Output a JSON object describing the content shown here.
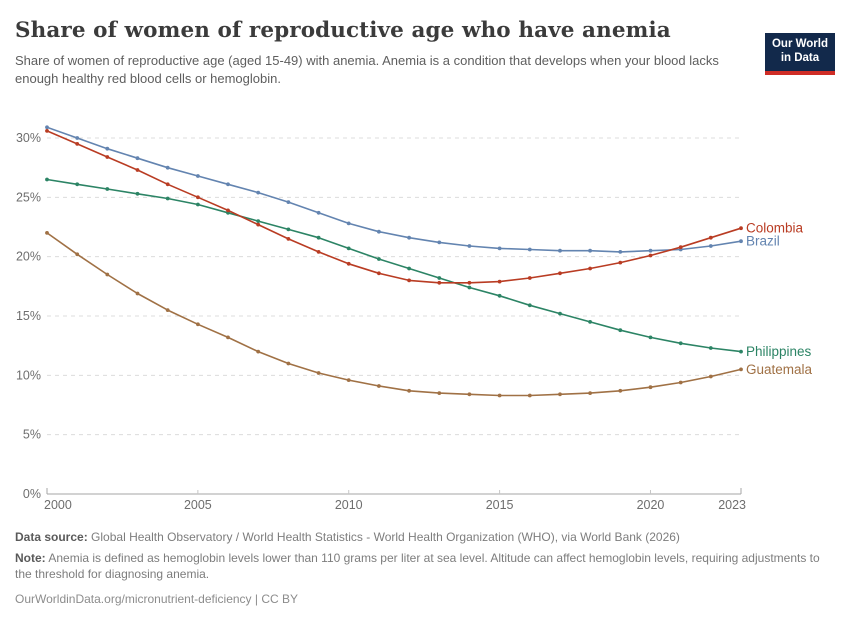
{
  "header": {
    "title": "Share of women of reproductive age who have anemia",
    "subtitle": "Share of women of reproductive age (aged 15-49) with anemia. Anemia is a condition that develops when your blood lacks enough healthy red blood cells or hemoglobin.",
    "logo": {
      "line1": "Our World",
      "line2": "in Data",
      "bg_color": "#12294b",
      "bar_color": "#cf2d26"
    }
  },
  "chart_data": {
    "type": "line",
    "title": "Share of women of reproductive age who have anemia",
    "x": [
      2000,
      2001,
      2002,
      2003,
      2004,
      2005,
      2006,
      2007,
      2008,
      2009,
      2010,
      2011,
      2012,
      2013,
      2014,
      2015,
      2016,
      2017,
      2018,
      2019,
      2020,
      2021,
      2022,
      2023
    ],
    "xlim": [
      2000,
      2023
    ],
    "ylim": [
      0,
      31
    ],
    "xticks": [
      2000,
      2005,
      2010,
      2015,
      2020,
      2023
    ],
    "yticks": [
      0,
      5,
      10,
      15,
      20,
      25,
      30
    ],
    "ytick_suffix": "%",
    "grid": "horizontal dashed",
    "legend_position": "end-of-line labels, right",
    "axis_color": "#a5a5a5",
    "grid_color": "#dcdcdc",
    "tick_label_color": "#6e6e6e",
    "series": [
      {
        "name": "Brazil",
        "color": "#6384b0",
        "values": [
          30.9,
          30.0,
          29.1,
          28.3,
          27.5,
          26.8,
          26.1,
          25.4,
          24.6,
          23.7,
          22.8,
          22.1,
          21.6,
          21.2,
          20.9,
          20.7,
          20.6,
          20.5,
          20.5,
          20.4,
          20.5,
          20.6,
          20.9,
          21.3
        ]
      },
      {
        "name": "Philippines",
        "color": "#2c8465",
        "values": [
          26.5,
          26.1,
          25.7,
          25.3,
          24.9,
          24.4,
          23.7,
          23.0,
          22.3,
          21.6,
          20.7,
          19.8,
          19.0,
          18.2,
          17.4,
          16.7,
          15.9,
          15.2,
          14.5,
          13.8,
          13.2,
          12.7,
          12.3,
          12.0
        ]
      },
      {
        "name": "Guatemala",
        "color": "#a07145",
        "values": [
          22.0,
          20.2,
          18.5,
          16.9,
          15.5,
          14.3,
          13.2,
          12.0,
          11.0,
          10.2,
          9.6,
          9.1,
          8.7,
          8.5,
          8.4,
          8.3,
          8.3,
          8.4,
          8.5,
          8.7,
          9.0,
          9.4,
          9.9,
          10.5
        ]
      },
      {
        "name": "Colombia",
        "color": "#b93c23",
        "values": [
          30.6,
          29.5,
          28.4,
          27.3,
          26.1,
          25.0,
          23.9,
          22.7,
          21.5,
          20.4,
          19.4,
          18.6,
          18.0,
          17.8,
          17.8,
          17.9,
          18.2,
          18.6,
          19.0,
          19.5,
          20.1,
          20.8,
          21.6,
          22.4
        ]
      }
    ]
  },
  "footer": {
    "datasource_label": "Data source:",
    "datasource_text": "Global Health Observatory / World Health Statistics - World Health Organization (WHO), via World Bank (2026)",
    "note_label": "Note:",
    "note_text": "Anemia is defined as hemoglobin levels lower than 110 grams per liter at sea level. Altitude can affect hemoglobin levels, requiring adjustments to the threshold for diagnosing anemia.",
    "url": "OurWorldinData.org/micronutrient-deficiency",
    "divider": "|",
    "license": "CC BY"
  }
}
